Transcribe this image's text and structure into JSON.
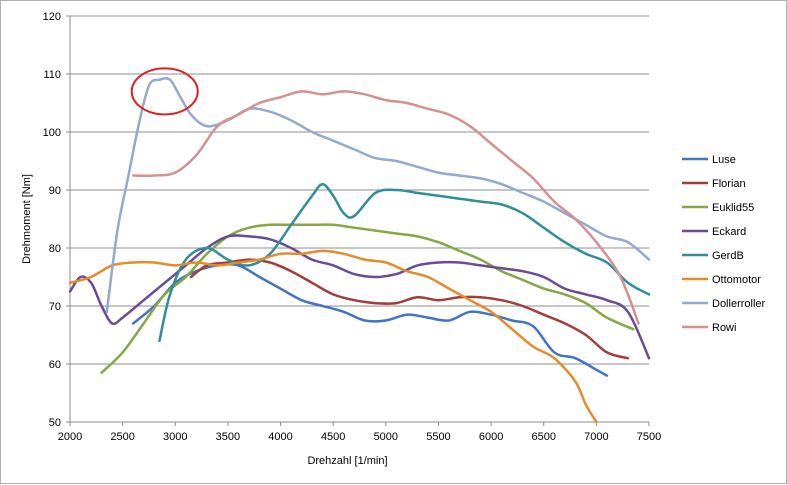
{
  "chart_data": {
    "type": "line",
    "title": "",
    "xlabel": "Drehzahl [1/min]",
    "ylabel": "Drehmoment [Nm]",
    "xlim": [
      2000,
      7500
    ],
    "ylim": [
      50,
      120
    ],
    "xticks": [
      2000,
      2500,
      3000,
      3500,
      4000,
      4500,
      5000,
      5500,
      6000,
      6500,
      7000,
      7500
    ],
    "yticks": [
      50,
      60,
      70,
      80,
      90,
      100,
      110,
      120
    ],
    "grid": "horizontal",
    "legend_position": "right",
    "annotation": {
      "shape": "ellipse",
      "color": "#e02020",
      "center": [
        2900,
        107
      ],
      "radius": [
        300,
        4
      ]
    },
    "series": [
      {
        "name": "Luse",
        "color": "#4472c4",
        "x": [
          2600,
          2800,
          3000,
          3200,
          3400,
          3600,
          3800,
          4000,
          4200,
          4400,
          4600,
          4800,
          5000,
          5200,
          5400,
          5600,
          5800,
          6000,
          6200,
          6400,
          6600,
          6800,
          7000,
          7100
        ],
        "y": [
          67,
          70,
          74,
          76,
          77,
          77,
          75,
          73,
          71,
          70,
          69,
          67.5,
          67.5,
          68.5,
          68,
          67.5,
          69,
          68.5,
          67.5,
          66.5,
          62,
          61,
          59,
          58
        ]
      },
      {
        "name": "Florian",
        "color": "#a33d3a",
        "x": [
          3150,
          3300,
          3500,
          3700,
          3900,
          4100,
          4300,
          4500,
          4700,
          4900,
          5100,
          5300,
          5500,
          5700,
          5900,
          6100,
          6300,
          6500,
          6700,
          6900,
          7100,
          7300
        ],
        "y": [
          75,
          77,
          77.5,
          78,
          77.5,
          76,
          74,
          72,
          71,
          70.5,
          70.5,
          71.5,
          71,
          71.5,
          71.5,
          71,
          70,
          68.5,
          67,
          65,
          62,
          61
        ]
      },
      {
        "name": "Euklid55",
        "color": "#86a744",
        "x": [
          2300,
          2500,
          2700,
          2900,
          3100,
          3300,
          3500,
          3700,
          3900,
          4100,
          4300,
          4500,
          4700,
          4900,
          5100,
          5300,
          5500,
          5700,
          5900,
          6100,
          6300,
          6500,
          6700,
          6900,
          7100,
          7350
        ],
        "y": [
          58.5,
          62,
          67,
          72,
          75,
          79,
          82,
          83.5,
          84,
          84,
          84,
          84,
          83.5,
          83,
          82.5,
          82,
          81,
          79.5,
          78,
          76,
          74.5,
          73,
          72,
          70.5,
          68,
          66
        ]
      },
      {
        "name": "Eckard",
        "color": "#6a4b95",
        "x": [
          2000,
          2100,
          2200,
          2300,
          2400,
          2500,
          2700,
          2900,
          3100,
          3300,
          3500,
          3700,
          3900,
          4100,
          4300,
          4500,
          4700,
          4900,
          5100,
          5300,
          5500,
          5700,
          5900,
          6100,
          6300,
          6500,
          6700,
          6900,
          7100,
          7300,
          7500
        ],
        "y": [
          72.5,
          75,
          74,
          70,
          67,
          68,
          71,
          74,
          77,
          80,
          82,
          82,
          81.5,
          80,
          78,
          77,
          75.5,
          75,
          75.5,
          77,
          77.5,
          77.5,
          77,
          76.5,
          76,
          75,
          73,
          72,
          71,
          69,
          61
        ]
      },
      {
        "name": "GerdB",
        "color": "#2f8d9c",
        "x": [
          2850,
          2950,
          3100,
          3300,
          3500,
          3700,
          3900,
          4100,
          4300,
          4400,
          4500,
          4600,
          4700,
          4900,
          5100,
          5300,
          5500,
          5700,
          5900,
          6100,
          6300,
          6500,
          6700,
          6900,
          7100,
          7300,
          7500
        ],
        "y": [
          64,
          72,
          78,
          80,
          78,
          77,
          79,
          84,
          89,
          91,
          89,
          86,
          85.5,
          89.5,
          90,
          89.5,
          89,
          88.5,
          88,
          87.5,
          86,
          83.5,
          81,
          79,
          77.5,
          74,
          72
        ]
      },
      {
        "name": "Ottomotor",
        "color": "#e58b2a",
        "x": [
          2000,
          2200,
          2400,
          2600,
          2800,
          3000,
          3200,
          3400,
          3600,
          3800,
          4000,
          4200,
          4400,
          4600,
          4800,
          5000,
          5200,
          5400,
          5600,
          5800,
          6000,
          6200,
          6400,
          6600,
          6800,
          6900,
          7000
        ],
        "y": [
          74,
          75,
          77,
          77.5,
          77.5,
          77,
          77.5,
          77,
          77.5,
          78,
          79,
          79,
          79.5,
          79,
          78,
          77.5,
          76,
          75,
          73,
          71,
          69,
          66,
          63,
          61,
          57,
          53,
          50
        ]
      },
      {
        "name": "Dollerroller",
        "color": "#92a9d0",
        "x": [
          2350,
          2450,
          2550,
          2650,
          2750,
          2850,
          2950,
          3050,
          3150,
          3300,
          3500,
          3700,
          3900,
          4100,
          4300,
          4500,
          4700,
          4900,
          5100,
          5300,
          5500,
          5700,
          5900,
          6100,
          6300,
          6500,
          6700,
          6900,
          7100,
          7300,
          7500
        ],
        "y": [
          69,
          83,
          92,
          101,
          108,
          109,
          109,
          106,
          103,
          101,
          102,
          104,
          103.5,
          102,
          100,
          98.5,
          97,
          95.5,
          95,
          94,
          93,
          92.5,
          92,
          91,
          89.5,
          88,
          86,
          84,
          82,
          81,
          78
        ]
      },
      {
        "name": "Rowi",
        "color": "#d4918e",
        "x": [
          2600,
          2800,
          3000,
          3200,
          3400,
          3600,
          3800,
          4000,
          4200,
          4400,
          4600,
          4800,
          5000,
          5200,
          5400,
          5600,
          5800,
          6000,
          6200,
          6400,
          6600,
          6800,
          7000,
          7200,
          7300,
          7400
        ],
        "y": [
          92.5,
          92.5,
          93,
          96,
          101,
          103,
          105,
          106,
          107,
          106.5,
          107,
          106.5,
          105.5,
          105,
          104,
          103,
          101,
          98,
          95,
          92,
          88,
          85,
          81,
          76,
          72,
          67
        ]
      }
    ]
  }
}
